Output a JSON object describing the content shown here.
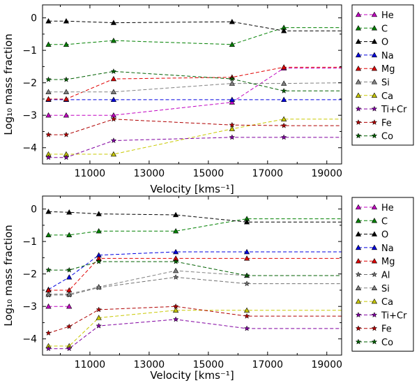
{
  "chart_data": [
    {
      "type": "line",
      "title": "",
      "xlabel": "Velocity [kms⁻¹]",
      "ylabel": "Log₁₀ mass fraction",
      "xlim": [
        9400,
        19500
      ],
      "ylim": [
        -4.5,
        0.4
      ],
      "xticks": [
        11000,
        13000,
        15000,
        17000,
        19000
      ],
      "yticks": [
        0,
        -1,
        -2,
        -3,
        -4
      ],
      "grid": false,
      "legend_position": "outside-right",
      "series": [
        {
          "name": "He",
          "color": "#c000c0",
          "marker": "triangle",
          "x": [
            9600,
            10200,
            11800,
            15800,
            17550,
            19500
          ],
          "y": [
            -3.0,
            -3.0,
            -3.0,
            -2.6,
            -1.55,
            -1.55
          ],
          "marker_x": [
            9600,
            10200,
            11800,
            15800,
            17550
          ],
          "marker_y": [
            -3.0,
            -3.0,
            -3.0,
            -2.6,
            -1.55
          ]
        },
        {
          "name": "C",
          "color": "#008000",
          "marker": "triangle",
          "x": [
            9600,
            10200,
            11800,
            15800,
            17550,
            19500
          ],
          "y": [
            -0.82,
            -0.82,
            -0.7,
            -0.82,
            -0.3,
            -0.3
          ],
          "marker_x": [
            9600,
            10200,
            11800,
            15800,
            17550
          ],
          "marker_y": [
            -0.82,
            -0.82,
            -0.7,
            -0.82,
            -0.3
          ]
        },
        {
          "name": "O",
          "color": "#000000",
          "marker": "triangle",
          "x": [
            9600,
            10200,
            11800,
            15800,
            17550,
            19500
          ],
          "y": [
            -0.1,
            -0.1,
            -0.15,
            -0.12,
            -0.4,
            -0.4
          ],
          "marker_x": [
            9600,
            10200,
            11800,
            15800,
            17550
          ],
          "marker_y": [
            -0.1,
            -0.1,
            -0.15,
            -0.12,
            -0.4
          ]
        },
        {
          "name": "Na",
          "color": "#0000e0",
          "marker": "triangle",
          "x": [
            9600,
            10200,
            11800,
            15800,
            17550,
            19500
          ],
          "y": [
            -2.52,
            -2.52,
            -2.52,
            -2.52,
            -2.52,
            -2.52
          ],
          "marker_x": [
            9600,
            10200,
            11800,
            15800,
            17550
          ],
          "marker_y": [
            -2.52,
            -2.52,
            -2.52,
            -2.52,
            -2.52
          ]
        },
        {
          "name": "Mg",
          "color": "#e00000",
          "marker": "triangle",
          "x": [
            9600,
            10200,
            11800,
            15800,
            17550,
            19500
          ],
          "y": [
            -2.5,
            -2.5,
            -1.88,
            -1.83,
            -1.52,
            -1.52
          ],
          "marker_x": [
            9600,
            10200,
            11800,
            15800,
            17550
          ],
          "marker_y": [
            -2.5,
            -2.5,
            -1.88,
            -1.83,
            -1.52
          ]
        },
        {
          "name": "Si",
          "color": "#808080",
          "marker": "triangle",
          "x": [
            9600,
            10200,
            11800,
            15800,
            17550,
            19500
          ],
          "y": [
            -2.28,
            -2.28,
            -2.28,
            -2.02,
            -2.02,
            -2.0
          ],
          "marker_x": [
            9600,
            10200,
            11800,
            15800,
            17550
          ],
          "marker_y": [
            -2.28,
            -2.28,
            -2.28,
            -2.02,
            -2.02
          ]
        },
        {
          "name": "Ca",
          "color": "#c8c800",
          "marker": "triangle",
          "x": [
            9600,
            10200,
            11800,
            15800,
            17550,
            19500
          ],
          "y": [
            -4.2,
            -4.2,
            -4.2,
            -3.42,
            -3.12,
            -3.12
          ],
          "marker_x": [
            9600,
            10200,
            11800,
            15800,
            17550
          ],
          "marker_y": [
            -4.2,
            -4.2,
            -4.2,
            -3.42,
            -3.12
          ]
        },
        {
          "name": "Ti+Cr",
          "color": "#8000a0",
          "marker": "star",
          "x": [
            9600,
            10200,
            11800,
            15800,
            17550,
            19500
          ],
          "y": [
            -4.3,
            -4.3,
            -3.78,
            -3.68,
            -3.68,
            -3.68
          ],
          "marker_x": [
            9600,
            10200,
            11800,
            15800,
            17550
          ],
          "marker_y": [
            -4.3,
            -4.3,
            -3.78,
            -3.68,
            -3.68
          ]
        },
        {
          "name": "Fe",
          "color": "#b00000",
          "marker": "star",
          "x": [
            9600,
            10200,
            11800,
            15800,
            17550,
            19500
          ],
          "y": [
            -3.6,
            -3.6,
            -3.12,
            -3.3,
            -3.32,
            -3.32
          ],
          "marker_x": [
            9600,
            10200,
            11800,
            15800,
            17550
          ],
          "marker_y": [
            -3.6,
            -3.6,
            -3.12,
            -3.3,
            -3.32
          ]
        },
        {
          "name": "Co",
          "color": "#006000",
          "marker": "star",
          "x": [
            9600,
            10200,
            11800,
            15800,
            17550,
            19500
          ],
          "y": [
            -1.9,
            -1.9,
            -1.65,
            -1.88,
            -2.25,
            -2.25
          ],
          "marker_x": [
            9600,
            10200,
            11800,
            15800,
            17550
          ],
          "marker_y": [
            -1.9,
            -1.9,
            -1.65,
            -1.88,
            -2.25
          ]
        }
      ]
    },
    {
      "type": "line",
      "title": "",
      "xlabel": "Velocity [kms⁻¹]",
      "ylabel": "Log₁₀ mass fraction",
      "xlim": [
        9400,
        19500
      ],
      "ylim": [
        -4.5,
        0.4
      ],
      "xticks": [
        11000,
        13000,
        15000,
        17000,
        19000
      ],
      "yticks": [
        0,
        -1,
        -2,
        -3,
        -4
      ],
      "grid": false,
      "legend_position": "outside-right",
      "series": [
        {
          "name": "He",
          "color": "#c000c0",
          "marker": "triangle",
          "x": [
            9600,
            10300
          ],
          "y": [
            -3.0,
            -3.0
          ],
          "marker_x": [
            9600,
            10300
          ],
          "marker_y": [
            -3.0,
            -3.0
          ]
        },
        {
          "name": "C",
          "color": "#008000",
          "marker": "triangle",
          "x": [
            9600,
            10300,
            11300,
            13900,
            16300,
            19500
          ],
          "y": [
            -0.8,
            -0.8,
            -0.68,
            -0.68,
            -0.3,
            -0.3
          ],
          "marker_x": [
            9600,
            10300,
            11300,
            13900,
            16300
          ],
          "marker_y": [
            -0.8,
            -0.8,
            -0.68,
            -0.68,
            -0.3
          ]
        },
        {
          "name": "O",
          "color": "#000000",
          "marker": "triangle",
          "x": [
            9600,
            10300,
            11300,
            13900,
            16300,
            19500
          ],
          "y": [
            -0.08,
            -0.1,
            -0.15,
            -0.18,
            -0.4,
            -0.4
          ],
          "marker_x": [
            9600,
            10300,
            11300,
            13900,
            16300
          ],
          "marker_y": [
            -0.08,
            -0.1,
            -0.15,
            -0.18,
            -0.4
          ]
        },
        {
          "name": "Na",
          "color": "#0000e0",
          "marker": "triangle",
          "x": [
            9600,
            10300,
            11300,
            13900,
            16300,
            19500
          ],
          "y": [
            -2.48,
            -2.1,
            -1.42,
            -1.32,
            -1.32,
            -1.32
          ],
          "marker_x": [
            9600,
            10300,
            11300,
            13900,
            16300
          ],
          "marker_y": [
            -2.48,
            -2.1,
            -1.42,
            -1.32,
            -1.32
          ]
        },
        {
          "name": "Mg",
          "color": "#e00000",
          "marker": "triangle",
          "x": [
            9600,
            10300,
            11300,
            13900,
            16300,
            19500
          ],
          "y": [
            -2.5,
            -2.5,
            -1.52,
            -1.52,
            -1.52,
            -1.52
          ],
          "marker_x": [
            9600,
            10300,
            11300,
            13900,
            16300
          ],
          "marker_y": [
            -2.5,
            -2.5,
            -1.52,
            -1.52,
            -1.52
          ]
        },
        {
          "name": "Al",
          "color": "#707070",
          "marker": "star",
          "x": [
            9600,
            10300,
            11300,
            13900,
            16300,
            19500
          ],
          "y": [
            -2.65,
            -2.65,
            -2.42,
            -2.1,
            -2.3,
            -2.3
          ],
          "marker_x": [
            9600,
            10300,
            11300,
            13900,
            16300
          ],
          "marker_y": [
            -2.65,
            -2.65,
            -2.42,
            -2.1,
            -2.3
          ]
        },
        {
          "name": "Si",
          "color": "#808080",
          "marker": "triangle",
          "x": [
            9600,
            10300,
            11300,
            13900,
            16300,
            19500
          ],
          "y": [
            -2.62,
            -2.62,
            -2.4,
            -1.9,
            -2.05,
            -2.05
          ],
          "marker_x": [
            9600,
            10300,
            11300,
            13900,
            16300
          ],
          "marker_y": [
            -2.62,
            -2.62,
            -2.4,
            -1.9,
            -2.05
          ]
        },
        {
          "name": "Ca",
          "color": "#c8c800",
          "marker": "triangle",
          "x": [
            9600,
            10300,
            11300,
            13900,
            16300,
            19500
          ],
          "y": [
            -4.22,
            -4.22,
            -3.35,
            -3.12,
            -3.12,
            -3.12
          ],
          "marker_x": [
            9600,
            10300,
            11300,
            13900,
            16300
          ],
          "marker_y": [
            -4.22,
            -4.22,
            -3.35,
            -3.12,
            -3.12
          ]
        },
        {
          "name": "Ti+Cr",
          "color": "#8000a0",
          "marker": "star",
          "x": [
            9600,
            10300,
            11300,
            13900,
            16300,
            19500
          ],
          "y": [
            -4.3,
            -4.3,
            -3.6,
            -3.4,
            -3.68,
            -3.68
          ],
          "marker_x": [
            9600,
            10300,
            11300,
            13900,
            16300
          ],
          "marker_y": [
            -4.3,
            -4.3,
            -3.6,
            -3.4,
            -3.68
          ]
        },
        {
          "name": "Fe",
          "color": "#b00000",
          "marker": "star",
          "x": [
            9600,
            10300,
            11300,
            13900,
            16300,
            19500
          ],
          "y": [
            -3.82,
            -3.62,
            -3.1,
            -3.0,
            -3.3,
            -3.3
          ],
          "marker_x": [
            9600,
            10300,
            11300,
            13900,
            16300
          ],
          "marker_y": [
            -3.82,
            -3.62,
            -3.1,
            -3.0,
            -3.3
          ]
        },
        {
          "name": "Co",
          "color": "#006000",
          "marker": "star",
          "x": [
            9600,
            10300,
            11300,
            13900,
            16300,
            19500
          ],
          "y": [
            -1.88,
            -1.88,
            -1.62,
            -1.62,
            -2.05,
            -2.05
          ],
          "marker_x": [
            9600,
            10300,
            11300,
            13900,
            16300
          ],
          "marker_y": [
            -1.88,
            -1.88,
            -1.62,
            -1.62,
            -2.05
          ]
        }
      ]
    }
  ]
}
